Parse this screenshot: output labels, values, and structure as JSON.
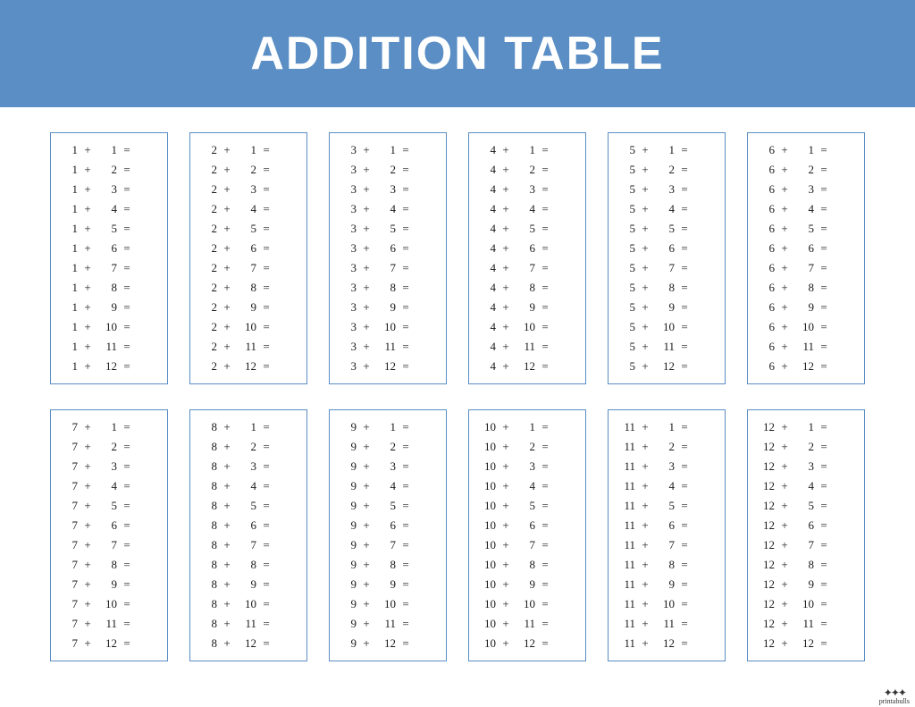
{
  "header": {
    "title": "Addition Table",
    "bg_color": "#5a8ec4",
    "text_color": "#ffffff"
  },
  "table": {
    "type": "table",
    "panel_border_color": "#5a8ec4",
    "background_color": "#ffffff",
    "text_color": "#1a1a1a",
    "font_size": 13,
    "operator": "+",
    "equals": "=",
    "first_operands": [
      1,
      2,
      3,
      4,
      5,
      6,
      7,
      8,
      9,
      10,
      11,
      12
    ],
    "second_operands": [
      1,
      2,
      3,
      4,
      5,
      6,
      7,
      8,
      9,
      10,
      11,
      12
    ],
    "grid_cols": 6,
    "grid_rows": 2
  },
  "attribution": {
    "text": "printabulls"
  }
}
